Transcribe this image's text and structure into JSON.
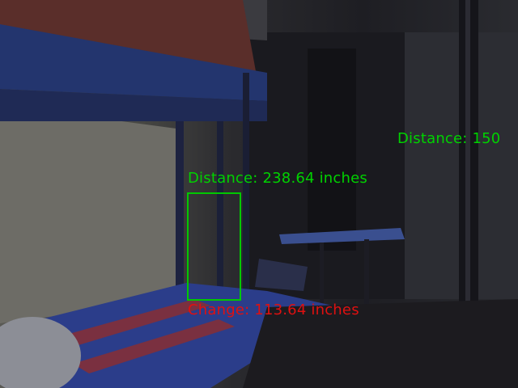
{
  "overlay": {
    "distance_primary": "Distance: 238.64 inches",
    "distance_secondary": "Distance: 150",
    "change": "Change: 113.64 inches"
  },
  "colors": {
    "distance_text": "#00d200",
    "change_text": "#e01010",
    "box": "#00c800"
  }
}
